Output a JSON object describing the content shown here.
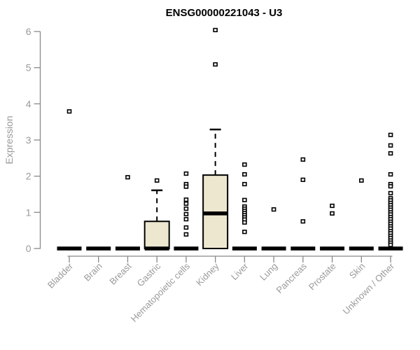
{
  "title": "ENSG00000221043 - U3",
  "colors": {
    "box_fill": "#EEE7D0",
    "box_stroke": "#000000",
    "median": "#000000",
    "outlier_stroke": "#000000",
    "outlier_fill": "#ffffff",
    "axis_line": "#898989",
    "tick_label": "#9a9a9a",
    "title": "#000000"
  },
  "chart_data": {
    "type": "box",
    "title": "ENSG00000221043 - U3",
    "xlabel": "",
    "ylabel": "Expression",
    "ylim": [
      0,
      6
    ],
    "yticks": [
      0,
      1,
      2,
      3,
      4,
      5,
      6
    ],
    "grid": false,
    "legend": false,
    "categories": [
      "Bladder",
      "Brain",
      "Breast",
      "Gastric",
      "Hematopoietic cells",
      "Kidney",
      "Liver",
      "Lung",
      "Pancreas",
      "Prostate",
      "Skin",
      "Unknown / Other"
    ],
    "series": [
      {
        "label": "Bladder",
        "q1": 0,
        "median": 0,
        "q3": 0,
        "whisker_low": 0,
        "whisker_high": 0,
        "outliers": [
          3.79
        ]
      },
      {
        "label": "Brain",
        "q1": 0,
        "median": 0,
        "q3": 0,
        "whisker_low": 0,
        "whisker_high": 0,
        "outliers": []
      },
      {
        "label": "Breast",
        "q1": 0,
        "median": 0,
        "q3": 0,
        "whisker_low": 0,
        "whisker_high": 0,
        "outliers": [
          1.97
        ]
      },
      {
        "label": "Gastric",
        "q1": 0,
        "median": 0,
        "q3": 0.75,
        "whisker_low": 0,
        "whisker_high": 1.61,
        "outliers": [
          1.88
        ]
      },
      {
        "label": "Hematopoietic cells",
        "q1": 0,
        "median": 0,
        "q3": 0,
        "whisker_low": 0,
        "whisker_high": 0,
        "outliers": [
          2.07,
          1.78,
          1.71,
          1.35,
          1.24,
          1.1,
          0.95,
          0.81,
          0.58,
          0.39
        ]
      },
      {
        "label": "Kidney",
        "q1": 0,
        "median": 0.97,
        "q3": 2.03,
        "whisker_low": 0,
        "whisker_high": 3.29,
        "outliers": [
          6.04,
          5.09
        ]
      },
      {
        "label": "Liver",
        "q1": 0,
        "median": 0,
        "q3": 0,
        "whisker_low": 0,
        "whisker_high": 0,
        "outliers": [
          2.32,
          2.05,
          1.78,
          1.34,
          1.16,
          1.1,
          1.04,
          0.98,
          0.92,
          0.86,
          0.8,
          0.72,
          0.46
        ]
      },
      {
        "label": "Lung",
        "q1": 0,
        "median": 0,
        "q3": 0,
        "whisker_low": 0,
        "whisker_high": 0,
        "outliers": [
          1.08
        ]
      },
      {
        "label": "Pancreas",
        "q1": 0,
        "median": 0,
        "q3": 0,
        "whisker_low": 0,
        "whisker_high": 0,
        "outliers": [
          2.46,
          1.9,
          0.75
        ]
      },
      {
        "label": "Prostate",
        "q1": 0,
        "median": 0,
        "q3": 0,
        "whisker_low": 0,
        "whisker_high": 0,
        "outliers": [
          1.18,
          0.97
        ]
      },
      {
        "label": "Skin",
        "q1": 0,
        "median": 0,
        "q3": 0,
        "whisker_low": 0,
        "whisker_high": 0,
        "outliers": [
          1.88
        ]
      },
      {
        "label": "Unknown / Other",
        "q1": 0,
        "median": 0,
        "q3": 0,
        "whisker_low": 0,
        "whisker_high": 0,
        "outliers": [
          3.14,
          2.85,
          2.63,
          2.05,
          1.78,
          1.72,
          1.53,
          1.39,
          1.33,
          1.26,
          1.2,
          1.13,
          1.07,
          1.0,
          0.94,
          0.87,
          0.81,
          0.74,
          0.68,
          0.61,
          0.55,
          0.48,
          0.42,
          0.35,
          0.29,
          0.22,
          0.16,
          0.1
        ]
      }
    ]
  }
}
